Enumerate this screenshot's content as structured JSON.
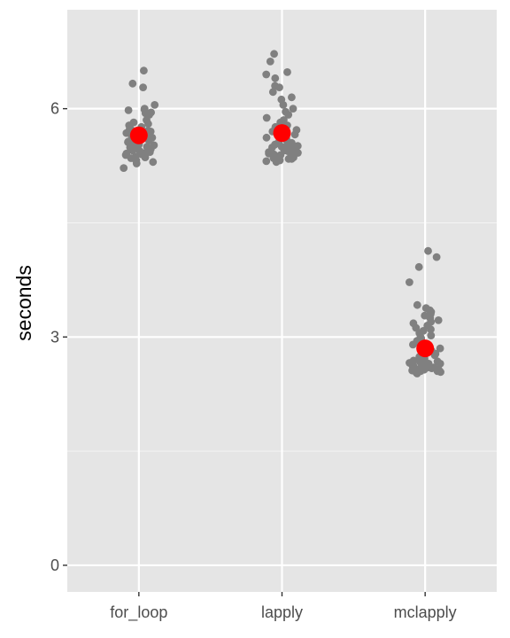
{
  "chart_data": {
    "type": "scatter",
    "title": "",
    "xlabel": "",
    "ylabel": "seconds",
    "categories": [
      "for_loop",
      "lapply",
      "mclapply"
    ],
    "y_ticks": [
      0,
      3,
      6
    ],
    "y_tick_labels": [
      "0",
      "3",
      "6"
    ],
    "ylim": [
      -0.35,
      7.3
    ],
    "grid": true,
    "legend": "none",
    "colors": {
      "panel_background": "#e5e5e5",
      "grid": "#ffffff",
      "points": "#808080",
      "mean": "#ff0000"
    },
    "series": [
      {
        "category": "for_loop",
        "mean": 5.65,
        "values": [
          6.5,
          6.33,
          6.28,
          6.05,
          6.0,
          5.99,
          5.98,
          5.95,
          5.94,
          5.92,
          5.85,
          5.82,
          5.8,
          5.78,
          5.76,
          5.74,
          5.73,
          5.71,
          5.7,
          5.69,
          5.68,
          5.67,
          5.66,
          5.65,
          5.64,
          5.63,
          5.62,
          5.61,
          5.6,
          5.59,
          5.58,
          5.57,
          5.56,
          5.55,
          5.54,
          5.53,
          5.52,
          5.51,
          5.5,
          5.49,
          5.48,
          5.47,
          5.46,
          5.45,
          5.44,
          5.43,
          5.42,
          5.41,
          5.4,
          5.39,
          5.38,
          5.37,
          5.36,
          5.35,
          5.34,
          5.33,
          5.32,
          5.3,
          5.28,
          5.22
        ]
      },
      {
        "category": "lapply",
        "mean": 5.68,
        "values": [
          6.72,
          6.62,
          6.48,
          6.45,
          6.4,
          6.3,
          6.28,
          6.22,
          6.15,
          6.12,
          6.05,
          6.0,
          5.96,
          5.92,
          5.88,
          5.85,
          5.82,
          5.8,
          5.78,
          5.76,
          5.74,
          5.72,
          5.7,
          5.68,
          5.66,
          5.64,
          5.62,
          5.6,
          5.58,
          5.56,
          5.55,
          5.54,
          5.53,
          5.52,
          5.51,
          5.5,
          5.49,
          5.48,
          5.47,
          5.46,
          5.45,
          5.44,
          5.43,
          5.42,
          5.41,
          5.4,
          5.39,
          5.38,
          5.37,
          5.36,
          5.35,
          5.34,
          5.33,
          5.32,
          5.31,
          5.3,
          5.34,
          5.36,
          5.38,
          5.42
        ]
      },
      {
        "category": "mclapply",
        "mean": 2.85,
        "values": [
          4.13,
          4.05,
          3.92,
          3.72,
          3.42,
          3.38,
          3.35,
          3.33,
          3.3,
          3.28,
          3.25,
          3.22,
          3.2,
          3.18,
          3.15,
          3.12,
          3.1,
          3.08,
          3.05,
          3.02,
          3.0,
          2.98,
          2.95,
          2.92,
          2.9,
          2.88,
          2.85,
          2.82,
          2.8,
          2.78,
          2.76,
          2.74,
          2.72,
          2.7,
          2.69,
          2.68,
          2.67,
          2.66,
          2.65,
          2.64,
          2.63,
          2.62,
          2.61,
          2.6,
          2.6,
          2.59,
          2.59,
          2.58,
          2.58,
          2.57,
          2.57,
          2.56,
          2.56,
          2.55,
          2.55,
          2.54,
          2.53,
          2.52,
          2.6,
          2.65
        ]
      }
    ]
  }
}
